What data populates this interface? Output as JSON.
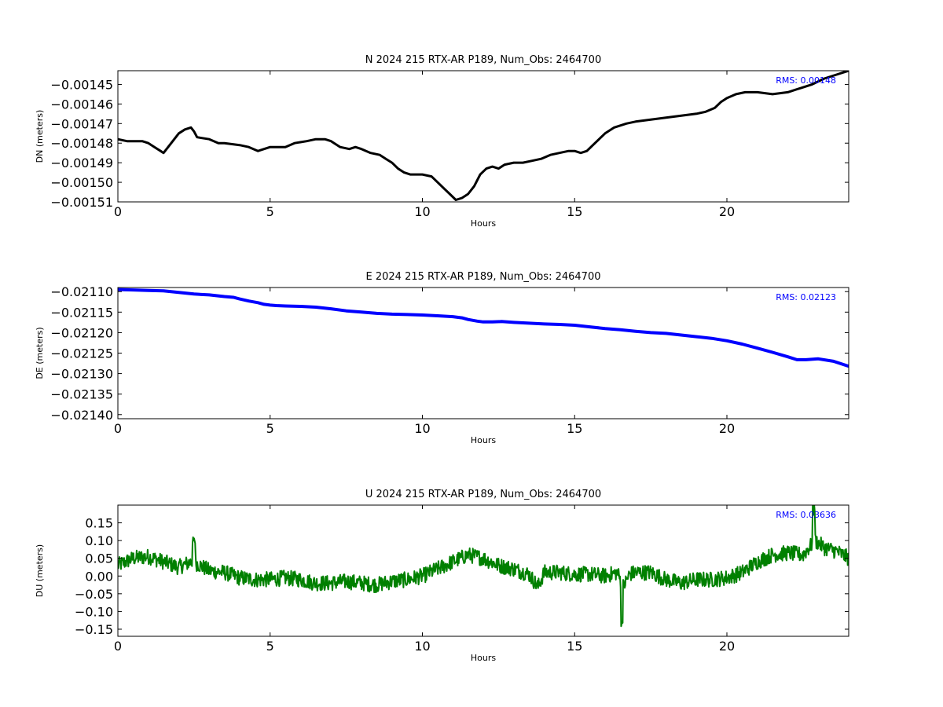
{
  "chart_data": [
    {
      "type": "line",
      "title": "N 2024 215 RTX-AR  P189, Num_Obs: 2464700",
      "xlabel": "Hours",
      "ylabel": "DN (meters)",
      "xlim": [
        0,
        24
      ],
      "ylim": [
        -0.00151,
        -0.001443
      ],
      "xticks": [
        "0",
        "5",
        "10",
        "15",
        "20"
      ],
      "xtick_values": [
        0,
        5,
        10,
        15,
        20
      ],
      "yticks": [
        "−0.00145",
        "−0.00146",
        "−0.00147",
        "−0.00148",
        "−0.00149",
        "−0.00150",
        "−0.00151"
      ],
      "ytick_values": [
        -0.00145,
        -0.00146,
        -0.00147,
        -0.00148,
        -0.00149,
        -0.0015,
        -0.00151
      ],
      "annotation": "RMS:  0.00148",
      "annotation_color": "#0000ff",
      "color": "#000000",
      "line_width": 3,
      "series": [
        {
          "x": [
            0,
            0.3,
            0.8,
            1.0,
            1.2,
            1.4,
            1.5,
            1.6,
            1.8,
            2.0,
            2.2,
            2.4,
            2.5,
            2.6,
            3.0,
            3.3,
            3.5,
            4.0,
            4.3,
            4.6,
            4.8,
            5.0,
            5.5,
            5.8,
            6.2,
            6.5,
            6.8,
            7.0,
            7.3,
            7.6,
            7.8,
            8.0,
            8.3,
            8.6,
            8.8,
            9.0,
            9.2,
            9.4,
            9.6,
            9.8,
            10.0,
            10.3,
            10.5,
            10.7,
            10.9,
            11.1,
            11.3,
            11.5,
            11.7,
            11.9,
            12.1,
            12.3,
            12.5,
            12.7,
            13.0,
            13.3,
            13.6,
            13.9,
            14.2,
            14.5,
            14.8,
            15.0,
            15.2,
            15.4,
            15.6,
            15.8,
            16.0,
            16.3,
            16.7,
            17.0,
            17.5,
            18.0,
            18.5,
            19.0,
            19.3,
            19.6,
            19.8,
            20.0,
            20.3,
            20.6,
            21.0,
            21.5,
            22.0,
            22.4,
            22.8,
            23.2,
            23.6,
            24.0
          ],
          "y": [
            -0.001478,
            -0.001479,
            -0.001479,
            -0.00148,
            -0.001482,
            -0.001484,
            -0.001485,
            -0.001483,
            -0.001479,
            -0.001475,
            -0.001473,
            -0.001472,
            -0.001474,
            -0.001477,
            -0.001478,
            -0.00148,
            -0.00148,
            -0.001481,
            -0.001482,
            -0.001484,
            -0.001483,
            -0.001482,
            -0.001482,
            -0.00148,
            -0.001479,
            -0.001478,
            -0.001478,
            -0.001479,
            -0.001482,
            -0.001483,
            -0.001482,
            -0.001483,
            -0.001485,
            -0.001486,
            -0.001488,
            -0.00149,
            -0.001493,
            -0.001495,
            -0.001496,
            -0.001496,
            -0.001496,
            -0.001497,
            -0.0015,
            -0.001503,
            -0.001506,
            -0.001509,
            -0.001508,
            -0.001506,
            -0.001502,
            -0.001496,
            -0.001493,
            -0.001492,
            -0.001493,
            -0.001491,
            -0.00149,
            -0.00149,
            -0.001489,
            -0.001488,
            -0.001486,
            -0.001485,
            -0.001484,
            -0.001484,
            -0.001485,
            -0.001484,
            -0.001481,
            -0.001478,
            -0.001475,
            -0.001472,
            -0.00147,
            -0.001469,
            -0.001468,
            -0.001467,
            -0.001466,
            -0.001465,
            -0.001464,
            -0.001462,
            -0.001459,
            -0.001457,
            -0.001455,
            -0.001454,
            -0.001454,
            -0.001455,
            -0.001454,
            -0.001452,
            -0.00145,
            -0.001447,
            -0.001445,
            -0.001443
          ]
        }
      ]
    },
    {
      "type": "line",
      "title": "E 2024 215 RTX-AR  P189, Num_Obs: 2464700",
      "xlabel": "Hours",
      "ylabel": "DE (meters)",
      "xlim": [
        0,
        24
      ],
      "ylim": [
        -0.02141,
        -0.02109
      ],
      "xticks": [
        "0",
        "5",
        "10",
        "15",
        "20"
      ],
      "xtick_values": [
        0,
        5,
        10,
        15,
        20
      ],
      "yticks": [
        "−0.02110",
        "−0.02115",
        "−0.02120",
        "−0.02125",
        "−0.02130",
        "−0.02135",
        "−0.02140"
      ],
      "ytick_values": [
        -0.0211,
        -0.02115,
        -0.0212,
        -0.02125,
        -0.0213,
        -0.02135,
        -0.0214
      ],
      "annotation": "RMS:  0.02123",
      "annotation_color": "#0000ff",
      "color": "#0000ff",
      "line_width": 4,
      "series": [
        {
          "x": [
            0,
            0.5,
            1.0,
            1.5,
            2.0,
            2.5,
            3.0,
            3.5,
            3.8,
            4.0,
            4.3,
            4.6,
            4.8,
            5.0,
            5.2,
            5.5,
            6.0,
            6.5,
            7.0,
            7.5,
            8.0,
            8.5,
            9.0,
            9.5,
            10.0,
            10.5,
            11.0,
            11.3,
            11.5,
            11.8,
            12.0,
            12.3,
            12.6,
            13.0,
            13.5,
            14.0,
            14.5,
            15.0,
            15.5,
            16.0,
            16.5,
            17.0,
            17.5,
            18.0,
            18.5,
            19.0,
            19.5,
            20.0,
            20.5,
            21.0,
            21.5,
            22.0,
            22.3,
            22.6,
            23.0,
            23.5,
            24.0
          ],
          "y": [
            -0.021095,
            -0.021096,
            -0.021097,
            -0.021098,
            -0.021102,
            -0.021106,
            -0.021108,
            -0.021112,
            -0.021114,
            -0.021118,
            -0.021123,
            -0.021127,
            -0.021131,
            -0.021133,
            -0.021134,
            -0.021135,
            -0.021136,
            -0.021138,
            -0.021142,
            -0.021147,
            -0.02115,
            -0.021153,
            -0.021155,
            -0.021156,
            -0.021157,
            -0.021159,
            -0.021161,
            -0.021164,
            -0.021168,
            -0.021172,
            -0.021174,
            -0.021174,
            -0.021173,
            -0.021175,
            -0.021177,
            -0.021179,
            -0.02118,
            -0.021182,
            -0.021186,
            -0.02119,
            -0.021193,
            -0.021197,
            -0.0212,
            -0.021202,
            -0.021206,
            -0.02121,
            -0.021214,
            -0.02122,
            -0.021228,
            -0.021238,
            -0.021248,
            -0.021259,
            -0.021266,
            -0.021266,
            -0.021264,
            -0.02127,
            -0.021282
          ]
        }
      ]
    },
    {
      "type": "line",
      "title": "U 2024 215 RTX-AR  P189, Num_Obs: 2464700",
      "xlabel": "Hours",
      "ylabel": "DU (meters)",
      "xlim": [
        0,
        24
      ],
      "ylim": [
        -0.17,
        0.2
      ],
      "xticks": [
        "0",
        "5",
        "10",
        "15",
        "20"
      ],
      "xtick_values": [
        0,
        5,
        10,
        15,
        20
      ],
      "yticks": [
        "0.15",
        "0.10",
        "0.05",
        "0.00",
        "−0.05",
        "−0.10",
        "−0.15"
      ],
      "ytick_values": [
        0.15,
        0.1,
        0.05,
        0.0,
        -0.05,
        -0.1,
        -0.15
      ],
      "annotation": "RMS:  0.03636",
      "annotation_color": "#0000ff",
      "color": "#008000",
      "line_width": 2,
      "noise": 0.022,
      "series": [
        {
          "x": [
            0,
            0.5,
            1.0,
            1.5,
            2.0,
            2.4,
            2.6,
            3.0,
            3.5,
            4.0,
            4.5,
            5.0,
            5.5,
            6.0,
            6.5,
            7.0,
            7.5,
            8.0,
            8.5,
            9.0,
            9.5,
            10.0,
            10.5,
            11.0,
            11.5,
            12.0,
            12.5,
            13.0,
            13.5,
            13.8,
            14.0,
            14.5,
            15.0,
            15.5,
            16.0,
            16.4,
            16.6,
            16.8,
            17.0,
            17.5,
            18.0,
            18.5,
            19.0,
            19.5,
            20.0,
            20.5,
            21.0,
            21.5,
            22.0,
            22.5,
            22.9,
            23.2,
            23.6,
            24.0
          ],
          "y": [
            0.03,
            0.05,
            0.055,
            0.04,
            0.025,
            0.04,
            0.035,
            0.015,
            0.01,
            -0.005,
            -0.01,
            -0.01,
            -0.005,
            -0.01,
            -0.02,
            -0.02,
            -0.015,
            -0.02,
            -0.025,
            -0.015,
            -0.01,
            0.0,
            0.02,
            0.04,
            0.06,
            0.05,
            0.03,
            0.02,
            0.005,
            -0.03,
            0.01,
            0.01,
            0.005,
            0.005,
            0.0,
            0.01,
            -0.03,
            0.005,
            0.01,
            0.01,
            -0.01,
            -0.02,
            -0.01,
            -0.01,
            -0.005,
            0.01,
            0.04,
            0.06,
            0.065,
            0.06,
            0.1,
            0.08,
            0.07,
            0.05
          ]
        }
      ]
    }
  ]
}
